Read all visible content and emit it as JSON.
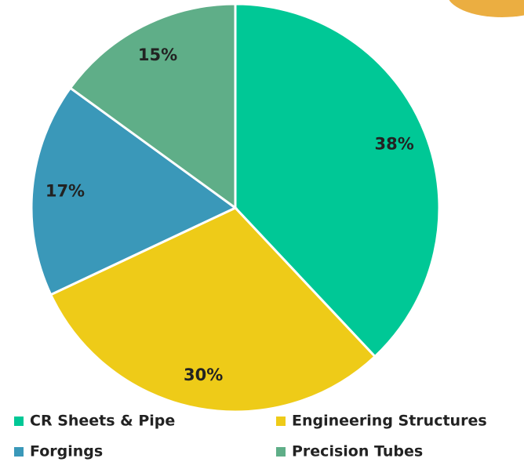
{
  "chart_data": {
    "type": "pie",
    "categories": [
      "CR Sheets & Pipe",
      "Engineering Structures",
      "Forgings",
      "Precision Tubes"
    ],
    "values": [
      38,
      30,
      17,
      15
    ],
    "value_labels": [
      "38%",
      "30%",
      "17%",
      "15%"
    ],
    "colors": [
      "#00c896",
      "#eecb18",
      "#3a98b9",
      "#5fae88"
    ]
  }
}
